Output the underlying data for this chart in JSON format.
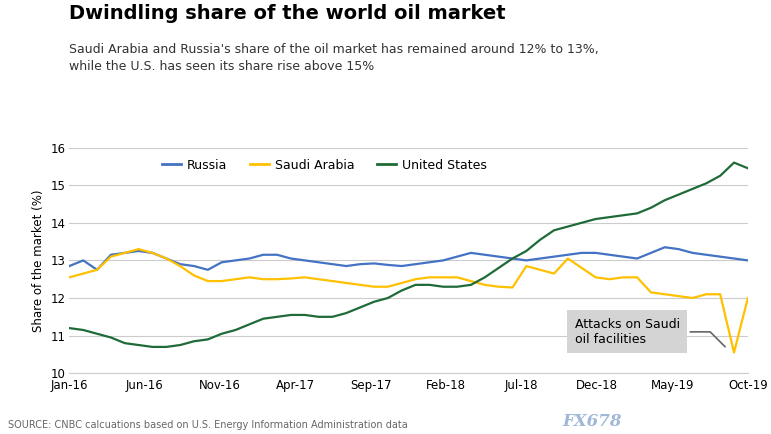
{
  "title": "Dwindling share of the world oil market",
  "subtitle": "Saudi Arabia and Russia's share of the oil market has remained around 12% to 13%,\nwhile the U.S. has seen its share rise above 15%",
  "ylabel": "Share of the market (%)",
  "source": "SOURCE: CNBC calcuations based on U.S. Energy Information Administration data",
  "ylim": [
    10,
    16
  ],
  "yticks": [
    10,
    11,
    12,
    13,
    14,
    15,
    16
  ],
  "annotation_text": "Attacks on Saudi\noil facilities",
  "legend_labels": [
    "Russia",
    "Saudi Arabia",
    "United States"
  ],
  "colors": {
    "russia": "#4472C4",
    "saudi": "#FFC000",
    "us": "#1F6B38"
  },
  "xtick_labels": [
    "Jan-16",
    "Jun-16",
    "Nov-16",
    "Apr-17",
    "Sep-17",
    "Feb-18",
    "Jul-18",
    "Dec-18",
    "May-19",
    "Oct-19"
  ],
  "russia": [
    12.85,
    13.0,
    12.75,
    13.15,
    13.2,
    13.25,
    13.2,
    13.05,
    12.9,
    12.85,
    12.75,
    12.95,
    13.0,
    13.05,
    13.15,
    13.15,
    13.05,
    13.0,
    12.95,
    12.9,
    12.85,
    12.9,
    12.92,
    12.88,
    12.85,
    12.9,
    12.95,
    13.0,
    13.1,
    13.2,
    13.15,
    13.1,
    13.05,
    13.0,
    13.05,
    13.1,
    13.15,
    13.2,
    13.2,
    13.15,
    13.1,
    13.05,
    13.2,
    13.35,
    13.3,
    13.2,
    13.15,
    13.1,
    13.05,
    13.0
  ],
  "saudi": [
    12.55,
    12.65,
    12.75,
    13.1,
    13.2,
    13.3,
    13.2,
    13.05,
    12.85,
    12.6,
    12.45,
    12.45,
    12.5,
    12.55,
    12.5,
    12.5,
    12.52,
    12.55,
    12.5,
    12.45,
    12.4,
    12.35,
    12.3,
    12.3,
    12.4,
    12.5,
    12.55,
    12.55,
    12.55,
    12.45,
    12.35,
    12.3,
    12.28,
    12.85,
    12.75,
    12.65,
    13.05,
    12.8,
    12.55,
    12.5,
    12.55,
    12.55,
    12.15,
    12.1,
    12.05,
    12.0,
    12.1,
    12.1,
    10.55,
    12.0
  ],
  "us": [
    11.2,
    11.15,
    11.05,
    10.95,
    10.8,
    10.75,
    10.7,
    10.7,
    10.75,
    10.85,
    10.9,
    11.05,
    11.15,
    11.3,
    11.45,
    11.5,
    11.55,
    11.55,
    11.5,
    11.5,
    11.6,
    11.75,
    11.9,
    12.0,
    12.2,
    12.35,
    12.35,
    12.3,
    12.3,
    12.35,
    12.55,
    12.8,
    13.05,
    13.25,
    13.55,
    13.8,
    13.9,
    14.0,
    14.1,
    14.15,
    14.2,
    14.25,
    14.4,
    14.6,
    14.75,
    14.9,
    15.05,
    15.25,
    15.6,
    15.45
  ]
}
